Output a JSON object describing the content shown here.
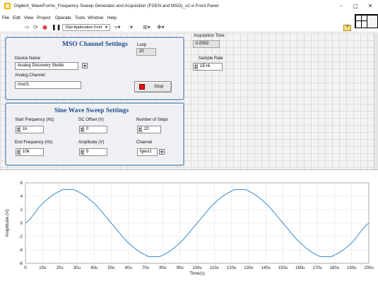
{
  "window": {
    "title": "Digilent_WaveForms_Frequency Sweep Generator and Acquisition (FGEN and MSO)_v2.vi Front Panel",
    "minimize": "–",
    "maximize": "□",
    "close": "✕"
  },
  "menu": [
    "File",
    "Edit",
    "View",
    "Project",
    "Operate",
    "Tools",
    "Window",
    "Help"
  ],
  "toolbar": {
    "font": "15pt Application Font",
    "help": "?"
  },
  "mso": {
    "title": "MSO Channel Settings",
    "loop_label": "Loop",
    "loop_value": "20",
    "device_label": "Device Name",
    "device_value": "Analog Discovery Studio",
    "channel_label": "Analog Channel",
    "channel_value": "mso/1",
    "stop_label": "Stop"
  },
  "acquisition": {
    "time_label": "Acquisition Time",
    "time_value": "0.0002",
    "rate_label": "Sample Rate",
    "rate_value": "1E+6"
  },
  "sweep": {
    "title": "Sine Wave Sweep Settings",
    "start_label": "Start Frequency (Hz)",
    "start_value": "1k",
    "dc_label": "DC Offset (V)",
    "dc_value": "0",
    "steps_label": "Number of Steps",
    "steps_value": "20",
    "end_label": "End Frequency (Hz)",
    "end_value": "10k",
    "amp_label": "Amplitude (V)",
    "amp_value": "5",
    "channel_label": "Channel",
    "channel_value": "fgen/1"
  },
  "chart_data": {
    "type": "line",
    "xlabel": "Time(s)",
    "ylabel": "Amplitude (V)",
    "xlim": [
      0,
      0.0002
    ],
    "ylim": [
      -6,
      6
    ],
    "x_ticks": [
      "0",
      "10u",
      "20u",
      "30u",
      "40u",
      "50u",
      "60u",
      "70u",
      "80u",
      "90u",
      "100u",
      "110u",
      "120u",
      "130u",
      "140u",
      "150u",
      "160u",
      "170u",
      "180u",
      "190u",
      "200u"
    ],
    "y_ticks": [
      "6",
      "4",
      "2",
      "0",
      "-2",
      "-4",
      "-6"
    ],
    "grid": true,
    "line_color": "#3a88c7",
    "series": [
      {
        "x": [
          0,
          1e-05,
          2e-05,
          2.5e-05,
          3e-05,
          4e-05,
          5e-05,
          6e-05,
          7e-05,
          7.5e-05,
          8e-05,
          9e-05,
          0.0001,
          0.00011,
          0.00012,
          0.000125,
          0.00013,
          0.00014,
          0.00015,
          0.00016,
          0.00017,
          0.000175,
          0.00018,
          0.00019,
          0.0002
        ],
        "y": [
          0,
          2.94,
          4.76,
          5,
          4.76,
          2.94,
          0,
          -2.94,
          -4.76,
          -5,
          -4.76,
          -2.94,
          0,
          2.94,
          4.76,
          5,
          4.76,
          2.94,
          0,
          -2.94,
          -4.76,
          -5,
          -4.76,
          -2.94,
          0
        ]
      }
    ]
  }
}
